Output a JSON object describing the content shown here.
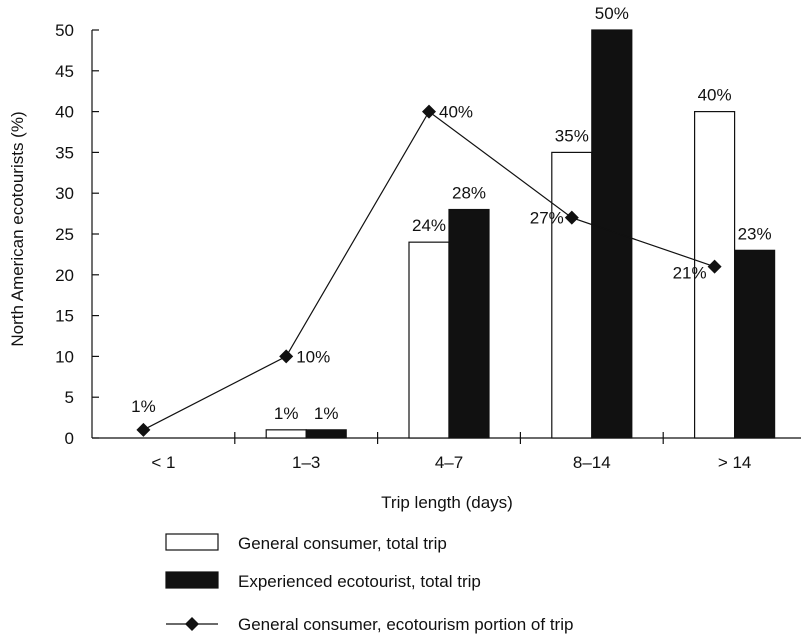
{
  "chart_data": {
    "type": "bar",
    "xlabel": "Trip length (days)",
    "ylabel": "North American ecotourists (%)",
    "ylim": [
      0,
      50
    ],
    "ytick_step": 5,
    "categories": [
      "< 1",
      "1–3",
      "4–7",
      "8–14",
      "> 14"
    ],
    "series": [
      {
        "name": "General consumer, total trip",
        "kind": "bar",
        "fill": "#ffffff",
        "values": [
          null,
          1,
          24,
          35,
          40
        ],
        "labels": [
          "",
          "1%",
          "24%",
          "35%",
          "40%"
        ]
      },
      {
        "name": "Experienced ecotourist, total trip",
        "kind": "bar",
        "fill": "#111111",
        "values": [
          null,
          1,
          28,
          50,
          23
        ],
        "labels": [
          "",
          "1%",
          "28%",
          "50%",
          "23%"
        ]
      },
      {
        "name": "General consumer, ecotourism portion of trip",
        "kind": "line",
        "marker": "diamond",
        "values": [
          1,
          10,
          40,
          27,
          21
        ],
        "labels": [
          "1%",
          "10%",
          "40%",
          "27%",
          "21%"
        ]
      }
    ],
    "legend_position": "bottom",
    "grid": false
  }
}
